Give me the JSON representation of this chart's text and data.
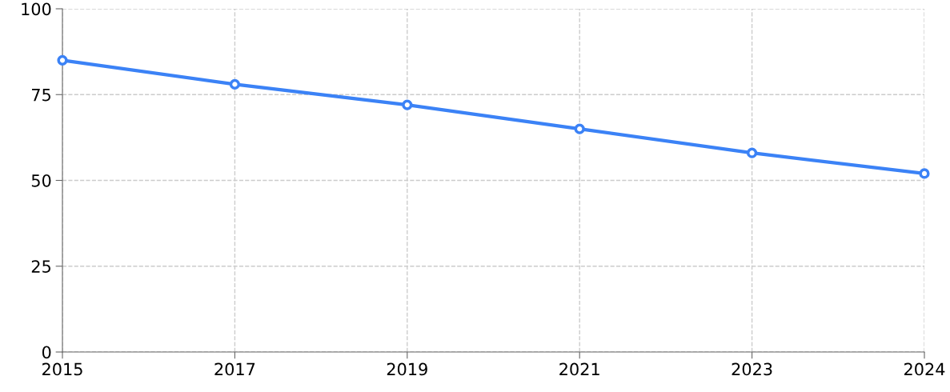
{
  "chart_data": {
    "type": "line",
    "categories": [
      "2015",
      "2017",
      "2019",
      "2021",
      "2023",
      "2024"
    ],
    "series": [
      {
        "color": "#3b82f6",
        "values": [
          85,
          78,
          72,
          65,
          58,
          52
        ]
      }
    ],
    "ylim": [
      0,
      100
    ],
    "yticks": [
      0,
      25,
      50,
      75,
      100
    ],
    "grid": true,
    "marker": "circle",
    "line_style": "solid"
  }
}
